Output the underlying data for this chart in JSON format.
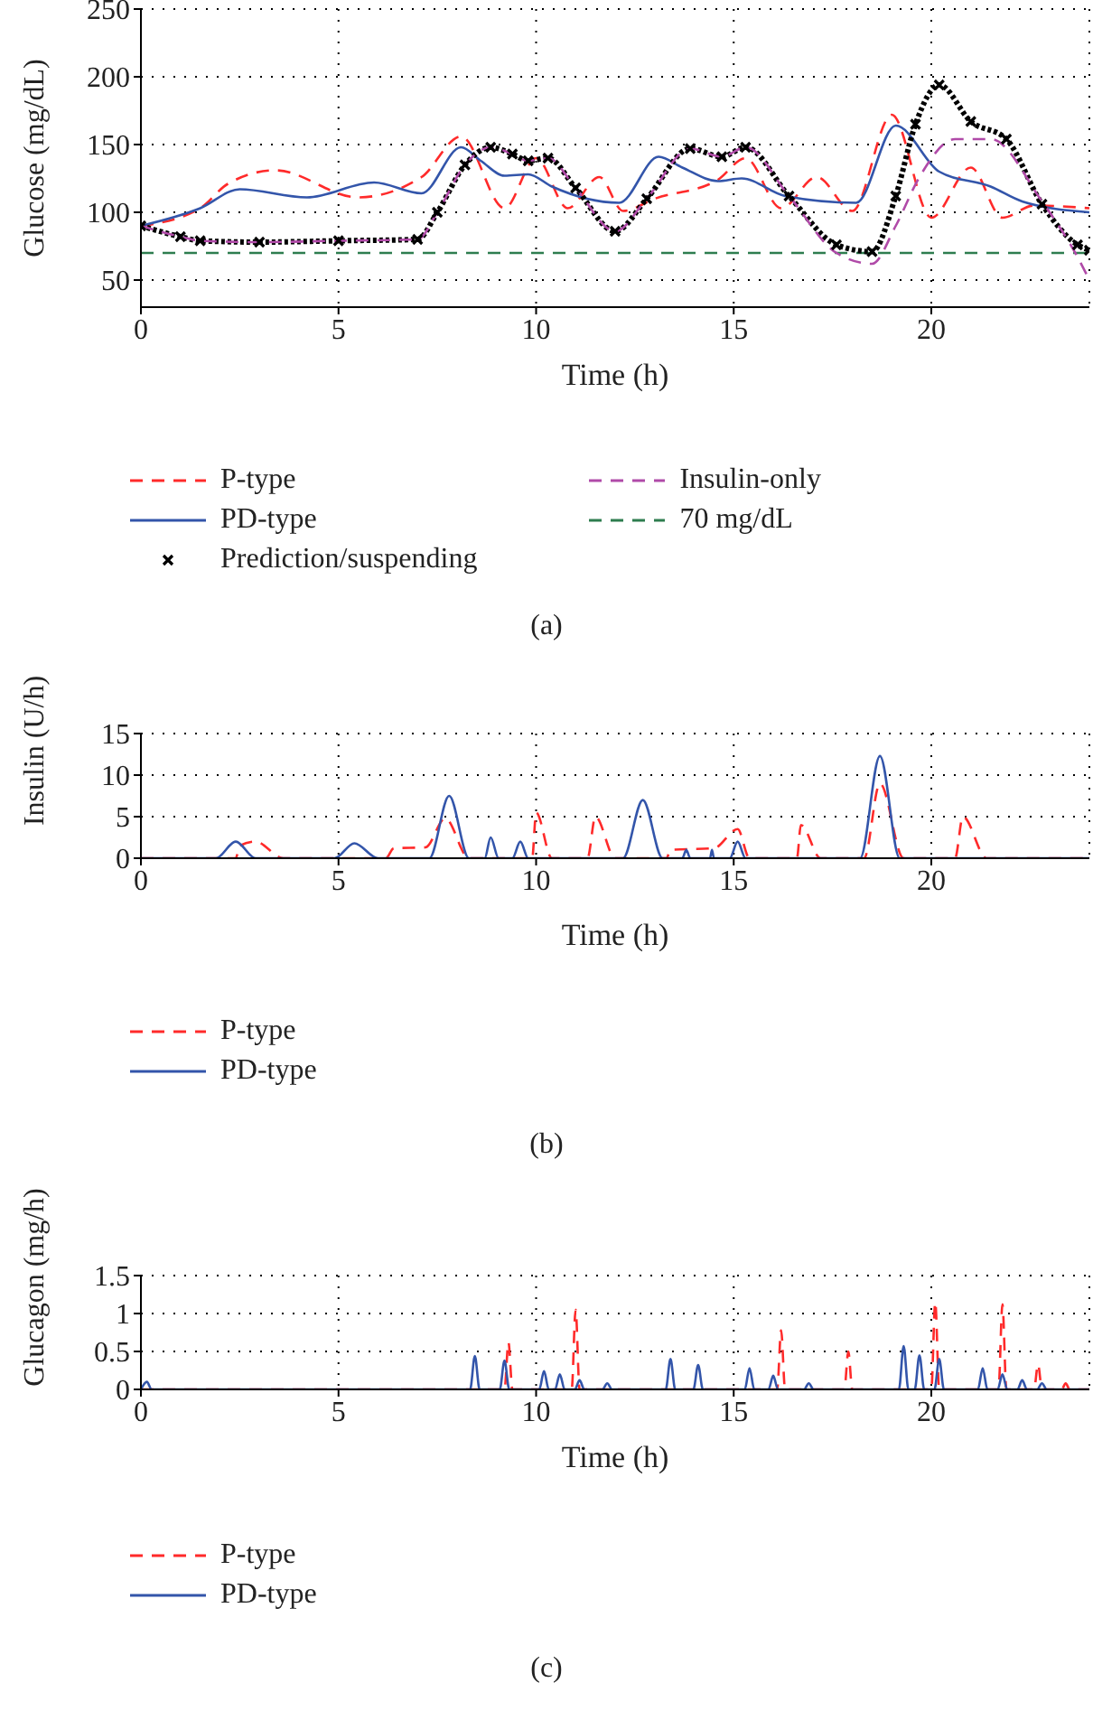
{
  "chart_data": [
    {
      "type": "line",
      "xlabel": "Time (h)",
      "ylabel": "Glucose (mg/dL)",
      "xlim": [
        0,
        24
      ],
      "xticks": [
        0,
        5,
        10,
        15,
        20
      ],
      "ylim": [
        30,
        250
      ],
      "yticks": [
        50,
        100,
        150,
        200,
        250
      ],
      "grid": true,
      "legend": "bottom",
      "annotations": [
        "(a)"
      ],
      "ref_lines": [
        {
          "axis": "y",
          "value": 70,
          "label": "70 mg/dL",
          "color": "#2e7d4f",
          "line_style": "dashed"
        }
      ],
      "series": [
        {
          "name": "P-type",
          "color": "#ff2a2a",
          "line_style": "dashed",
          "x": [
            0,
            1.5,
            2.2,
            3.4,
            5.5,
            7.1,
            8.1,
            9.2,
            10,
            10.8,
            11.6,
            12.2,
            13,
            14.6,
            15.3,
            16.2,
            17.1,
            18,
            19,
            20,
            21,
            21.8,
            22.6,
            24
          ],
          "values": [
            90,
            103,
            121,
            131,
            111,
            126,
            156,
            103,
            140,
            103,
            126,
            101,
            110,
            124,
            140,
            103,
            126,
            101,
            172,
            96,
            133,
            96,
            105,
            103
          ]
        },
        {
          "name": "PD-type",
          "color": "#3355aa",
          "line_style": "solid",
          "x": [
            0,
            1.5,
            2.5,
            4.2,
            5.9,
            7.1,
            8.1,
            8.6,
            9.2,
            9.8,
            10.4,
            12.1,
            13.1,
            13.7,
            14.6,
            15.2,
            16.3,
            18.1,
            19.1,
            20.2,
            21.5,
            22.3,
            24
          ],
          "values": [
            90,
            103,
            117,
            111,
            122,
            114,
            148,
            138,
            127,
            128,
            119,
            107,
            141,
            133,
            123,
            125,
            112,
            107,
            164,
            130,
            119,
            108,
            100
          ]
        },
        {
          "name": "Prediction/suspending",
          "color": "#000000",
          "line_style": "dotted",
          "marker": "cross",
          "x": [
            0,
            1,
            1.5,
            3,
            5,
            7,
            7.5,
            8.2,
            8.85,
            9.4,
            9.8,
            10.3,
            11,
            12,
            12.8,
            13.9,
            14.7,
            15.3,
            16.4,
            17.6,
            18.5,
            19.1,
            19.6,
            20.2,
            21,
            21.9,
            22.8,
            23.7,
            24
          ],
          "values": [
            90,
            82,
            79,
            78,
            79,
            80,
            100,
            135,
            148,
            143,
            138,
            140,
            118,
            86,
            110,
            147,
            141,
            148,
            112,
            76,
            71,
            112,
            165,
            194,
            167,
            154,
            106,
            76,
            72
          ]
        },
        {
          "name": "Insulin-only",
          "color": "#b04aa8",
          "line_style": "dashed",
          "x": [
            0,
            1,
            1.5,
            3,
            5,
            7,
            7.5,
            8.2,
            8.85,
            9.4,
            9.8,
            10.3,
            11,
            12,
            12.8,
            13.9,
            14.7,
            15.3,
            16.4,
            17.6,
            18.5,
            19.1,
            19.7,
            20.6,
            21.5,
            22.8,
            23.7,
            24
          ],
          "values": [
            90,
            82,
            79,
            78,
            79,
            80,
            100,
            135,
            148,
            143,
            138,
            140,
            118,
            86,
            110,
            147,
            141,
            148,
            112,
            70,
            62,
            90,
            126,
            154,
            154,
            108,
            67,
            50
          ]
        }
      ]
    },
    {
      "type": "line",
      "xlabel": "Time (h)",
      "ylabel": "Insulin (U/h)",
      "xlim": [
        0,
        24
      ],
      "xticks": [
        0,
        5,
        10,
        15,
        20
      ],
      "ylim": [
        0,
        15
      ],
      "yticks": [
        0,
        5,
        10,
        15
      ],
      "grid": true,
      "legend": "bottom",
      "annotations": [
        "(b)"
      ],
      "series": [
        {
          "name": "P-type",
          "color": "#ff2a2a",
          "line_style": "dashed",
          "x": [
            0,
            2.4,
            2.5,
            2.9,
            3.6,
            6.2,
            6.4,
            7.2,
            7.7,
            8.3,
            9.9,
            10,
            10.4,
            11.3,
            11.5,
            12,
            13.3,
            13.4,
            14.5,
            15.1,
            15.4,
            16.6,
            16.7,
            17.2,
            18.3,
            18.7,
            19.3,
            20.6,
            20.8,
            21.4,
            24
          ],
          "values": [
            0,
            0,
            1.5,
            2,
            0,
            0,
            1.2,
            1.3,
            4.8,
            0,
            0,
            5.5,
            0,
            0,
            5,
            0,
            0,
            1,
            1.2,
            3.5,
            0,
            0,
            4,
            0,
            0,
            9,
            0,
            0,
            5,
            0,
            0
          ]
        },
        {
          "name": "PD-type",
          "color": "#3355aa",
          "line_style": "solid",
          "x": [
            0,
            1.9,
            2.4,
            2.9,
            4.9,
            5.4,
            6,
            7.3,
            7.8,
            8.3,
            8.7,
            8.85,
            9.05,
            9.4,
            9.6,
            9.8,
            12.2,
            12.7,
            13.2,
            13.7,
            13.8,
            13.9,
            14.4,
            14.45,
            14.5,
            14.9,
            15.1,
            15.3,
            18.2,
            18.7,
            19.2,
            24
          ],
          "values": [
            0,
            0,
            2,
            0,
            0,
            1.8,
            0,
            0,
            7.5,
            0,
            0,
            2.5,
            0,
            0,
            2,
            0,
            0,
            7,
            0,
            0,
            1,
            0,
            0,
            1,
            0,
            0,
            2,
            0,
            0,
            12.3,
            0,
            0
          ]
        }
      ]
    },
    {
      "type": "line",
      "xlabel": "Time (h)",
      "ylabel": "Glucagon (mg/h)",
      "xlim": [
        0,
        24
      ],
      "xticks": [
        0,
        5,
        10,
        15,
        20
      ],
      "ylim": [
        0,
        1.5
      ],
      "yticks": [
        0,
        0.5,
        1,
        1.5
      ],
      "grid": true,
      "legend": "bottom",
      "annotations": [
        "(c)"
      ],
      "series": [
        {
          "name": "P-type",
          "color": "#ff2a2a",
          "line_style": "dashed",
          "x": [
            0,
            9.2,
            9.3,
            9.4,
            10.9,
            11,
            11.1,
            16.1,
            16.2,
            16.3,
            17.8,
            17.9,
            18,
            20,
            20.1,
            20.2,
            21.7,
            21.8,
            21.9,
            22.6,
            22.7,
            22.8,
            23.3,
            23.4,
            23.5,
            24
          ],
          "values": [
            0,
            0,
            0.62,
            0,
            0,
            1.05,
            0,
            0,
            0.78,
            0,
            0,
            0.5,
            0,
            0,
            1.15,
            0,
            0,
            1.12,
            0,
            0,
            0.33,
            0,
            0,
            0.08,
            0,
            0
          ]
        },
        {
          "name": "PD-type",
          "color": "#3355aa",
          "line_style": "solid",
          "x": [
            0,
            0.15,
            0.27,
            8.33,
            8.45,
            8.57,
            9.08,
            9.2,
            9.32,
            10.08,
            10.2,
            10.32,
            10.48,
            10.6,
            10.72,
            10.98,
            11.1,
            11.22,
            11.68,
            11.8,
            11.92,
            13.28,
            13.4,
            13.52,
            13.98,
            14.1,
            14.22,
            15.28,
            15.4,
            15.52,
            15.88,
            16,
            16.12,
            16.78,
            16.9,
            17.02,
            19.18,
            19.3,
            19.42,
            19.58,
            19.7,
            19.82,
            20.08,
            20.2,
            20.32,
            21.18,
            21.3,
            21.42,
            21.68,
            21.8,
            21.92,
            22.18,
            22.3,
            22.42,
            22.68,
            22.8,
            22.92,
            24
          ],
          "values": [
            0,
            0.1,
            0,
            0,
            0.44,
            0,
            0,
            0.38,
            0,
            0,
            0.24,
            0,
            0,
            0.2,
            0,
            0,
            0.12,
            0,
            0,
            0.08,
            0,
            0,
            0.4,
            0,
            0,
            0.32,
            0,
            0,
            0.28,
            0,
            0,
            0.18,
            0,
            0,
            0.08,
            0,
            0,
            0.57,
            0,
            0,
            0.45,
            0,
            0,
            0.4,
            0,
            0,
            0.28,
            0,
            0,
            0.2,
            0,
            0,
            0.12,
            0,
            0,
            0.08,
            0,
            0
          ]
        }
      ]
    }
  ]
}
